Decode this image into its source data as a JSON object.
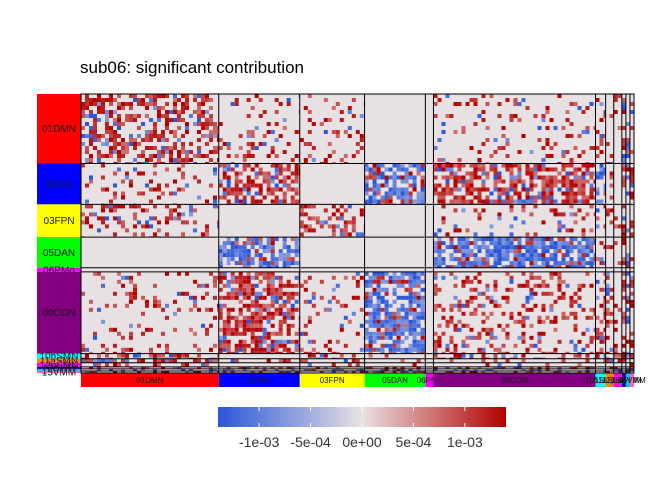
{
  "chart_data": {
    "type": "heatmap",
    "title": "sub06: significant contribution",
    "networks": [
      {
        "name": "01DMN",
        "size": 68,
        "color": "#FF0000"
      },
      {
        "name": "02lVis",
        "size": 40,
        "color": "#0000FF"
      },
      {
        "name": "03FPN",
        "size": 32,
        "color": "#FFFF00"
      },
      {
        "name": "05DAN",
        "size": 30,
        "color": "#00FF00"
      },
      {
        "name": "06PMo",
        "size": 4,
        "color": "#FF00FF"
      },
      {
        "name": "09CON",
        "size": 80,
        "color": "#800080"
      },
      {
        "name": "10hSMN",
        "size": 5,
        "color": "#00FFFF"
      },
      {
        "name": "11aSMN",
        "size": 4,
        "color": "#FF8000"
      },
      {
        "name": "12pSMN",
        "size": 4,
        "color": "#FF00FF"
      },
      {
        "name": "13AUD",
        "size": 2,
        "color": "#000080"
      },
      {
        "name": "14PMM",
        "size": 2,
        "color": "#00BFFF"
      },
      {
        "name": "15VMM",
        "size": 2,
        "color": "#FF69B4"
      }
    ],
    "colorbar": {
      "min": -0.0014,
      "max": 0.0014,
      "ticks": [
        -0.001,
        -0.0005,
        0,
        0.0005,
        0.001
      ],
      "tick_labels": [
        "-1e-03",
        "-5e-04",
        "0e+00",
        "5e-04",
        "1e-03"
      ],
      "low_color": "#2A56D8",
      "mid_color": "#E8E1E3",
      "high_color": "#B30000"
    },
    "block_means": [
      [
        0.0006,
        0.0001,
        0.0001,
        0.0,
        0.0,
        0.0001,
        0.0002,
        0.0002,
        0.0001,
        0.0004,
        -0.0004,
        0.0004
      ],
      [
        0.0001,
        0.0007,
        0.0,
        -0.0008,
        0.0,
        0.0008,
        -0.0004,
        0.0002,
        0.0,
        0.0004,
        -0.0004,
        0.0004
      ],
      [
        0.0003,
        0.0,
        0.0005,
        0.0,
        0.0,
        0.0001,
        0.0002,
        0.0002,
        0.0002,
        0.0004,
        -0.0004,
        0.0004
      ],
      [
        0.0,
        -0.0008,
        0.0,
        0.0,
        0.0,
        -0.0009,
        0.0003,
        0.0001,
        0.0001,
        0.0004,
        -0.0004,
        0.0004
      ],
      [
        0.0,
        0.0,
        0.0,
        0.0,
        0.0,
        0.0,
        0.0,
        0.0,
        0.0,
        0.0,
        0.0,
        0.0
      ],
      [
        0.0001,
        0.0008,
        0.0001,
        -0.0009,
        0.0,
        0.0003,
        0.0004,
        0.0002,
        0.0002,
        0.0004,
        -0.0004,
        0.0004
      ],
      [
        0.0006,
        0.0,
        0.0002,
        0.0001,
        0.0,
        0.0004,
        0.0004,
        0.0004,
        0.0003,
        0.0004,
        -0.0004,
        0.0004
      ],
      [
        0.0006,
        0.0002,
        0.0002,
        0.0001,
        0.0,
        0.0002,
        0.0004,
        0.0004,
        0.0003,
        0.0004,
        -0.0004,
        0.0004
      ],
      [
        0.0004,
        0.0,
        0.0002,
        0.0001,
        0.0,
        0.0002,
        0.0003,
        0.0003,
        0.0003,
        0.0004,
        -0.0004,
        0.0004
      ],
      [
        0.0004,
        0.0004,
        0.0004,
        0.0004,
        0.0,
        0.0004,
        0.0004,
        0.0004,
        0.0004,
        0.0004,
        -0.0004,
        0.0004
      ],
      [
        -0.0004,
        -0.0004,
        -0.0004,
        -0.0004,
        0.0,
        -0.0004,
        -0.0004,
        -0.0004,
        -0.0004,
        -0.0004,
        0.0004,
        -0.0004
      ],
      [
        0.0004,
        0.0004,
        0.0004,
        0.0004,
        0.0,
        0.0004,
        0.0004,
        0.0004,
        0.0004,
        0.0004,
        -0.0004,
        0.0004
      ]
    ]
  }
}
